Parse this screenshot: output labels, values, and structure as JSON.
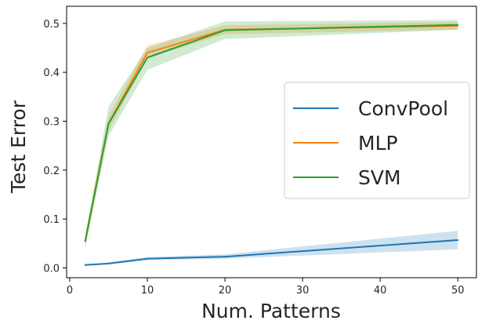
{
  "chart_data": {
    "type": "line",
    "xlabel": "Num. Patterns",
    "ylabel": "Test Error",
    "xlim": [
      -0.4,
      52.4
    ],
    "ylim": [
      -0.02,
      0.535
    ],
    "xticks": [
      0,
      10,
      20,
      30,
      40,
      50
    ],
    "xtick_labels": [
      "0",
      "10",
      "20",
      "30",
      "40",
      "50"
    ],
    "yticks": [
      0.0,
      0.1,
      0.2,
      0.3,
      0.4,
      0.5
    ],
    "ytick_labels": [
      "0.0",
      "0.1",
      "0.2",
      "0.3",
      "0.4",
      "0.5"
    ],
    "grid": false,
    "legend_position": "center-right",
    "x": [
      2,
      5,
      10,
      20,
      50
    ],
    "series": [
      {
        "name": "ConvPool",
        "color": "#1f77b4",
        "values": [
          0.006,
          0.009,
          0.019,
          0.023,
          0.057
        ],
        "lower": [
          0.005,
          0.007,
          0.016,
          0.019,
          0.038
        ],
        "upper": [
          0.008,
          0.011,
          0.022,
          0.028,
          0.076
        ]
      },
      {
        "name": "MLP",
        "color": "#ff7f0e",
        "values": [
          0.055,
          0.295,
          0.44,
          0.487,
          0.495
        ],
        "lower": [
          0.04,
          0.28,
          0.43,
          0.478,
          0.487
        ],
        "upper": [
          0.07,
          0.31,
          0.455,
          0.496,
          0.503
        ]
      },
      {
        "name": "SVM",
        "color": "#2ca02c",
        "values": [
          0.055,
          0.295,
          0.43,
          0.486,
          0.497
        ],
        "lower": [
          0.045,
          0.27,
          0.405,
          0.468,
          0.487
        ],
        "upper": [
          0.065,
          0.33,
          0.45,
          0.504,
          0.507
        ]
      }
    ]
  }
}
